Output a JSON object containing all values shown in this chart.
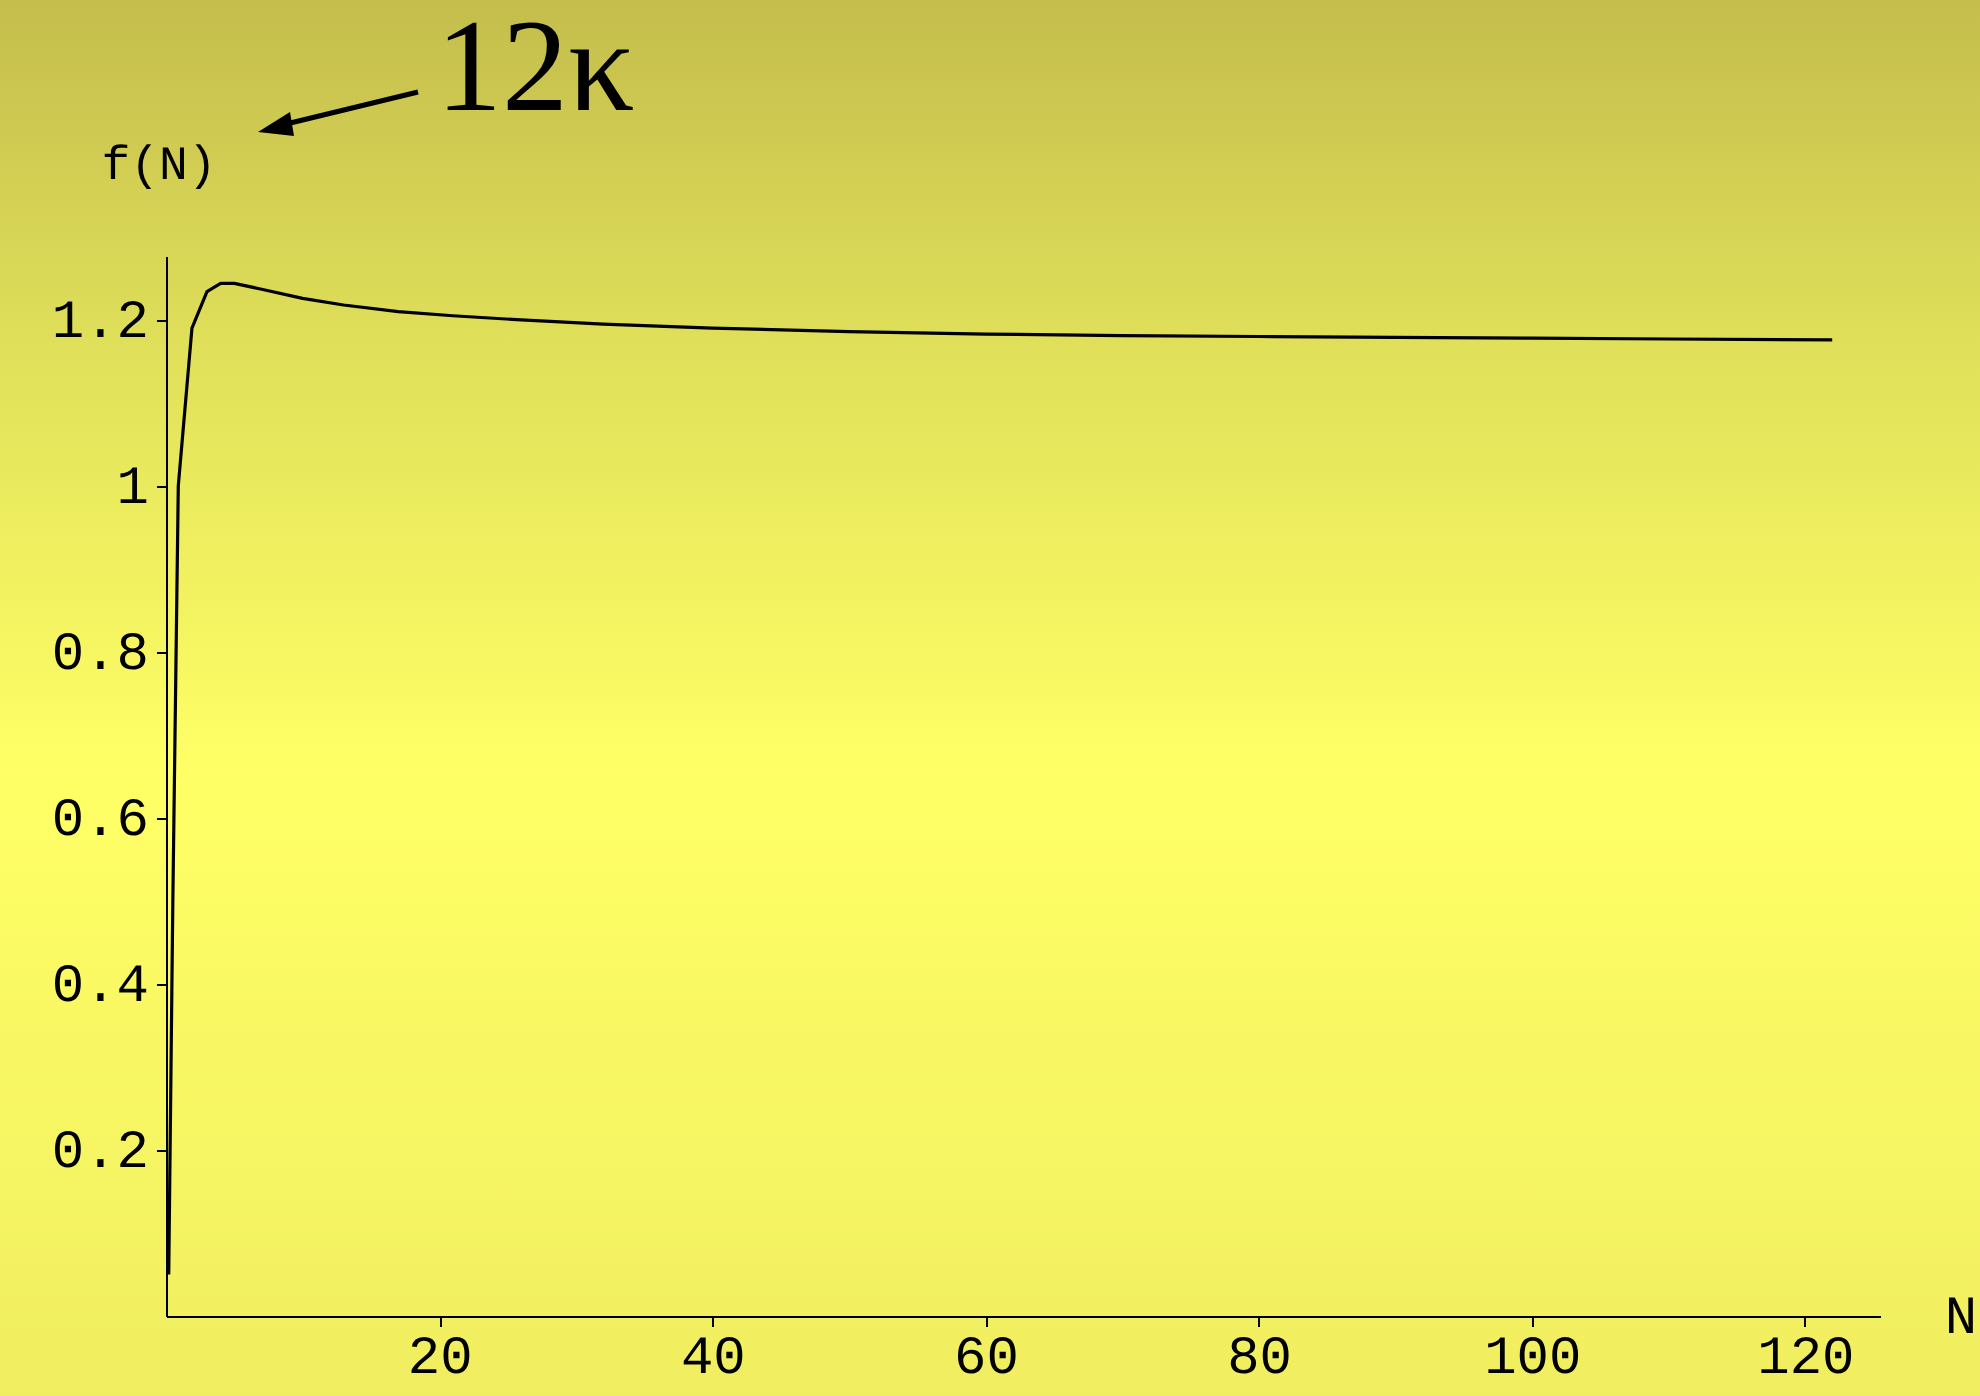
{
  "chart_data": {
    "type": "line",
    "xlabel": "N",
    "ylabel": "f(N)",
    "annotations": [
      "12κ"
    ],
    "x": [
      0.2,
      0.5,
      0.9,
      1.9,
      3,
      4,
      5,
      7,
      10,
      13,
      17,
      21,
      26,
      32,
      40,
      50,
      60,
      70,
      80,
      90,
      100,
      110,
      122
    ],
    "series": [
      {
        "color": "#000000",
        "values": [
          0.05,
          0.5,
          1.0,
          1.19,
          1.234,
          1.244,
          1.244,
          1.237,
          1.226,
          1.218,
          1.21,
          1.205,
          1.2,
          1.195,
          1.19,
          1.186,
          1.183,
          1.181,
          1.18,
          1.179,
          1.178,
          1.177,
          1.176
        ]
      }
    ],
    "xlim": [
      0,
      125.5
    ],
    "ylim": [
      0,
      1.277
    ],
    "xticks": [
      20,
      40,
      60,
      80,
      100,
      120
    ],
    "yticks": [
      0.2,
      0.4,
      0.6,
      0.8,
      1,
      1.2
    ]
  }
}
